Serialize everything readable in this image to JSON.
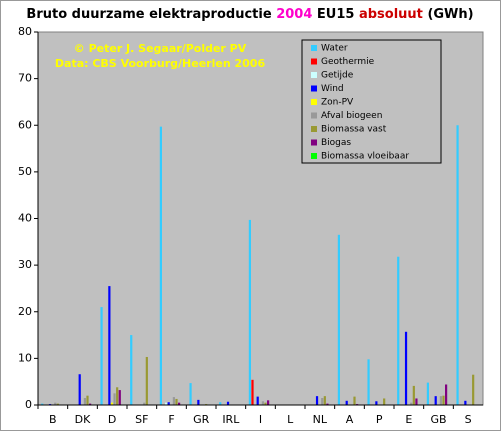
{
  "chart_data": {
    "type": "bar",
    "title_parts": [
      {
        "text": "Bruto duurzame elektraproductie",
        "color": "#000000"
      },
      {
        "text": "2004",
        "color": "#ff00cc"
      },
      {
        "text": "EU15",
        "color": "#000000"
      },
      {
        "text": "absoluut",
        "color": "#cc0000"
      },
      {
        "text": "(GWh)",
        "color": "#000000"
      }
    ],
    "annotations": [
      "© Peter J. Segaar/Polder PV",
      "Data: CBS Voorburg/Heerlen 2006"
    ],
    "categories": [
      "B",
      "DK",
      "D",
      "SF",
      "F",
      "GR",
      "IRL",
      "I",
      "L",
      "NL",
      "A",
      "P",
      "E",
      "GB",
      "S"
    ],
    "series": [
      {
        "name": "Water",
        "color": "#33ccff",
        "values": [
          0.3,
          0,
          21,
          15,
          59.7,
          4.7,
          0.6,
          39.7,
          0.1,
          0.1,
          36.5,
          9.8,
          31.8,
          4.8,
          60
        ]
      },
      {
        "name": "Geothermie",
        "color": "#ff0000",
        "values": [
          0,
          0,
          0,
          0,
          0,
          0,
          0,
          5.4,
          0,
          0,
          0,
          0,
          0,
          0,
          0
        ]
      },
      {
        "name": "Getijde",
        "color": "#ccffff",
        "values": [
          0,
          0,
          0,
          0,
          0.5,
          0,
          0,
          0,
          0,
          0,
          0,
          0,
          0,
          0,
          0
        ]
      },
      {
        "name": "Wind",
        "color": "#0000ff",
        "values": [
          0.2,
          6.6,
          25.5,
          0.1,
          0.6,
          1.1,
          0.7,
          1.8,
          0,
          1.9,
          0.9,
          0.8,
          15.7,
          1.9,
          0.9
        ]
      },
      {
        "name": "Zon-PV",
        "color": "#ffff00",
        "values": [
          0,
          0,
          0.5,
          0,
          0,
          0,
          0,
          0,
          0,
          0,
          0,
          0,
          0,
          0,
          0
        ]
      },
      {
        "name": "Afval biogeen",
        "color": "#999999",
        "values": [
          0.5,
          1.5,
          2.5,
          0.5,
          1.7,
          0,
          0,
          0.8,
          0,
          1.5,
          0,
          0,
          0.5,
          1.9,
          0
        ]
      },
      {
        "name": "Biomassa vast",
        "color": "#999933",
        "values": [
          0.3,
          2,
          3.8,
          10.3,
          1.3,
          0.2,
          0,
          0.5,
          0,
          1.9,
          1.8,
          1.4,
          4.1,
          2,
          6.5
        ]
      },
      {
        "name": "Biogas",
        "color": "#800080",
        "values": [
          0,
          0.3,
          3.2,
          0,
          0.5,
          0,
          0,
          1,
          0,
          0.3,
          0.2,
          0,
          1.4,
          4.4,
          0
        ]
      },
      {
        "name": "Biomassa vloeibaar",
        "color": "#00ff00",
        "values": [
          0,
          0,
          0,
          0,
          0,
          0,
          0,
          0,
          0,
          0,
          0,
          0,
          0,
          0,
          0
        ]
      }
    ],
    "ylim": [
      0,
      80
    ],
    "yticks": [
      0,
      10,
      20,
      30,
      40,
      50,
      60,
      70,
      80
    ],
    "plot_color": "#c0c0c0",
    "annotation_color": "#ffff00"
  }
}
